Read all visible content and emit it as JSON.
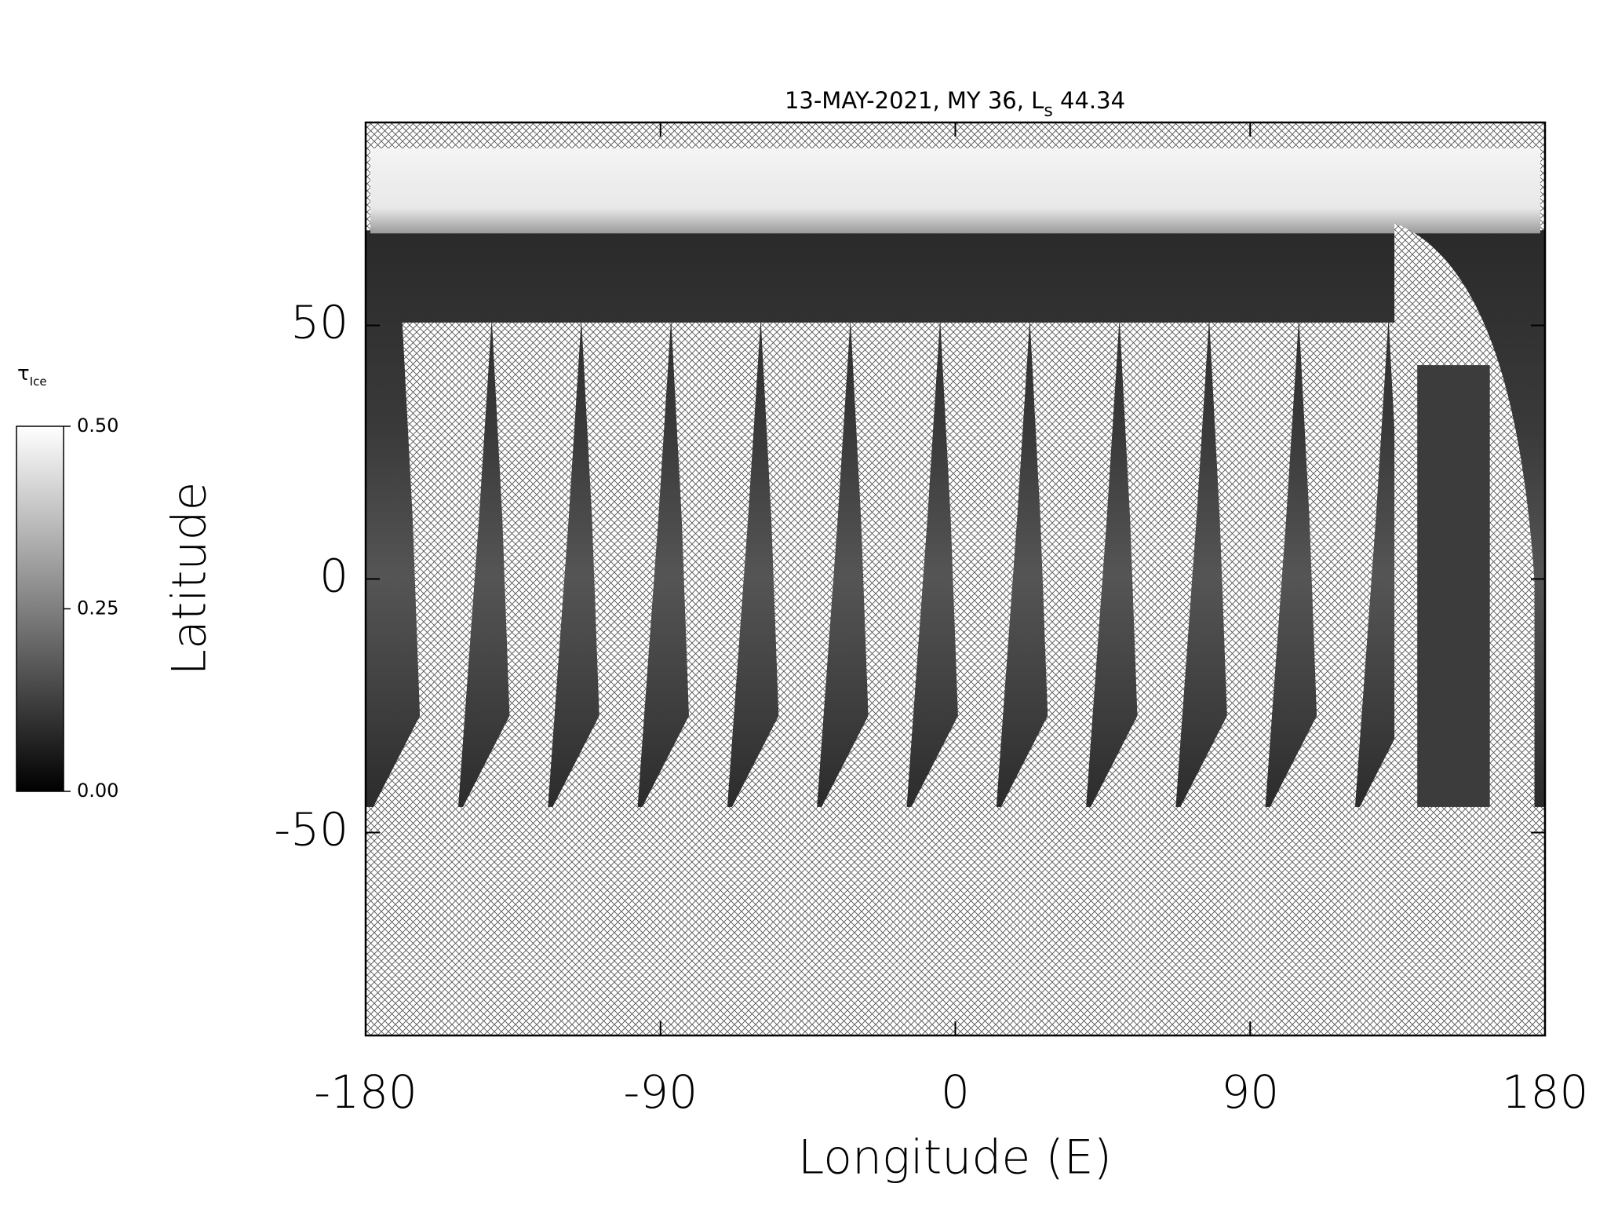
{
  "chart_data": {
    "type": "map",
    "title": "13-MAY-2021, MY 36,  L",
    "title_subscript": "s",
    "title_suffix": " 44.34",
    "x_label": "Longitude (E)",
    "y_label": "Latitude",
    "xlim": [
      -180,
      180
    ],
    "xticks": [
      -180,
      -90,
      0,
      90,
      180
    ],
    "ylim": [
      -90,
      90
    ],
    "yticks": [
      -50,
      0,
      50
    ],
    "colorbar_label": "τ",
    "colorbar_label_subscript": "Ice",
    "clim": [
      0,
      0.5
    ],
    "cticks": [
      {
        "value": 0,
        "label": "0.00"
      },
      {
        "value": 0.25,
        "label": "0.25"
      },
      {
        "value": 0.5,
        "label": "0.50"
      }
    ]
  }
}
